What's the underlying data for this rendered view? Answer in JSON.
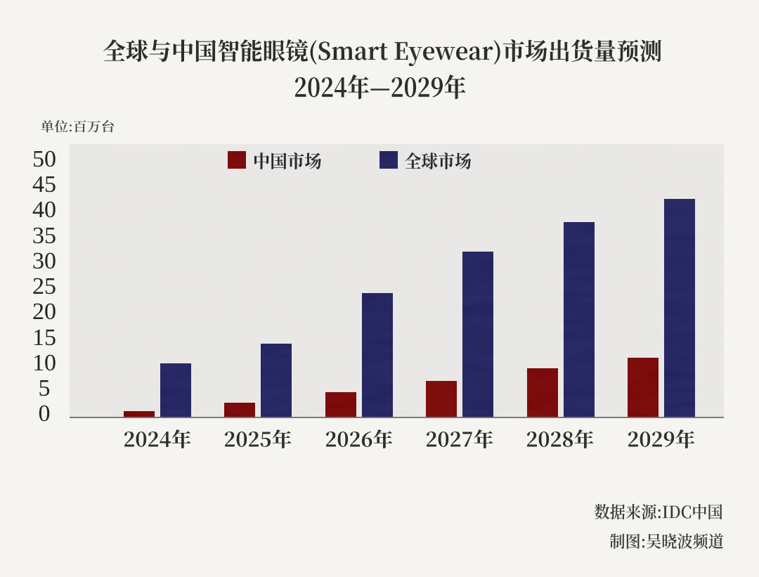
{
  "page": {
    "background": "#f5f4f1",
    "plot_background": "#e8e7e5"
  },
  "title": {
    "line1": "全球与中国智能眼镜(Smart Eyewear)市场出货量预测",
    "line2": "2024年—2029年"
  },
  "unit_label": "单位:百万台",
  "legend": {
    "items": [
      {
        "label": "中国市场",
        "color": "#790404"
      },
      {
        "label": "全球市场",
        "color": "#20215f"
      }
    ]
  },
  "footer": {
    "source": "数据来源:IDC中国",
    "credit": "制图:吴晓波频道"
  },
  "chart_data": {
    "type": "bar",
    "title": "全球与中国智能眼镜(Smart Eyewear)市场出货量预测",
    "subtitle": "2024年—2029年",
    "unit": "百万台",
    "categories": [
      "2024年",
      "2025年",
      "2026年",
      "2027年",
      "2028年",
      "2029年"
    ],
    "series": [
      {
        "name": "中国市场",
        "color": "#790404",
        "values": [
          1.3,
          2.9,
          5.0,
          7.2,
          9.6,
          11.8
        ]
      },
      {
        "name": "全球市场",
        "color": "#20215f",
        "values": [
          10.7,
          14.5,
          24.4,
          32.6,
          38.4,
          43.0
        ]
      }
    ],
    "ylim": [
      0,
      50
    ],
    "yticks": [
      0,
      5,
      10,
      15,
      20,
      25,
      30,
      35,
      40,
      45,
      50
    ],
    "grid": false,
    "legend_position": "top",
    "source": "IDC中国",
    "credit": "吴晓波频道"
  }
}
